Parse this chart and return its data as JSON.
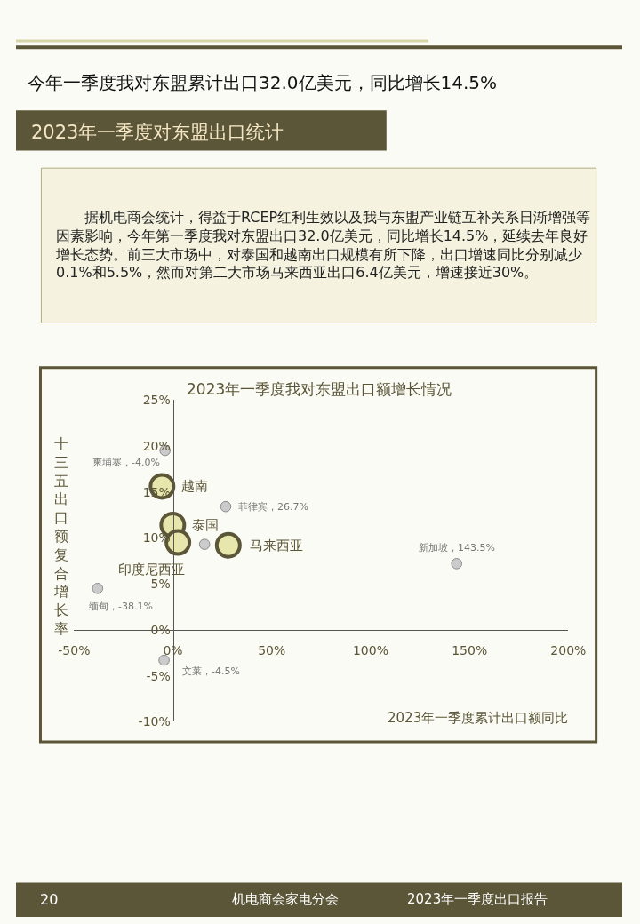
{
  "chart_data": {
    "type": "bubble",
    "title": "2023年一季度我对东盟出口额增长情况",
    "xlabel": "2023年一季度累计出口额同比",
    "ylabel": "十三五出口额复合增长率",
    "x": [
      -4.0,
      -5.5,
      26.7,
      -0.1,
      2.5,
      16,
      28,
      143.5,
      -38.1,
      -4.5
    ],
    "values": [
      19.5,
      15.6,
      13.4,
      11.4,
      9.5,
      9.3,
      9.2,
      7.2,
      4.5,
      -3.3
    ],
    "sizes": [
      0.2,
      1,
      0.2,
      1,
      1,
      0.2,
      1,
      0.2,
      0.2,
      0.2
    ],
    "colors": [
      "#cbcbcb",
      "#e6e6ad",
      "#cbcbcb",
      "#e6e6ad",
      "#e6e6ad",
      "#cbcbcb",
      "#e6e6ad",
      "#cbcbcb",
      "#cbcbcb",
      "#cbcbcb"
    ],
    "marker": "circle",
    "xlim": [
      -50,
      200
    ],
    "xticks": [
      {
        "value": -50,
        "label": "-50%"
      },
      {
        "value": 0,
        "label": "0%"
      },
      {
        "value": 50,
        "label": "50%"
      },
      {
        "value": 100,
        "label": "100%"
      },
      {
        "value": 150,
        "label": "150%"
      },
      {
        "value": 200,
        "label": "200%"
      }
    ],
    "ylim": [
      -10,
      25
    ],
    "yticks": [
      {
        "value": -10,
        "label": "-10%"
      },
      {
        "value": -5,
        "label": "-5%"
      },
      {
        "value": 0,
        "label": "0%"
      },
      {
        "value": 5,
        "label": "5%"
      },
      {
        "value": 10,
        "label": "10%"
      },
      {
        "value": 15,
        "label": "15%"
      },
      {
        "value": 20,
        "label": "20%"
      },
      {
        "value": 25,
        "label": "25%"
      }
    ],
    "grid": false,
    "legend": false,
    "annotations": [
      "今年一季度我对东盟累计出口32.0亿美元，同比增长14.5%",
      "2023年一季度对东盟出口统计",
      "据机电商会统计，得益于RCEP红利生效以及我与东盟产业链互补关系日渐增强等因素影响，今年第一季度我对东盟出口32.0亿美元，同比增长14.5%，延续去年良好增长态势。前三大市场中，对泰国和越南出口规模有所下降，出口增速同比分别减少0.1%和5.5%，然而对第二大市场马来西亚出口6.4亿美元，增速接近30%。",
      "20",
      "机电商会家电分会",
      "2023年一季度出口报告",
      {
        "text": "柬埔寨，-4.0%",
        "x": -4.0,
        "y": 19.5
      },
      {
        "text": "越南",
        "x": -5.5,
        "y": 15.6
      },
      {
        "text": "菲律宾，26.7%",
        "x": 26.7,
        "y": 13.4
      },
      {
        "text": "泰国",
        "x": -0.1,
        "y": 11.4
      },
      {
        "text": "印度尼西亚",
        "x": 2.5,
        "y": 9.5
      },
      {
        "text": "马来西亚",
        "x": 28,
        "y": 9.2
      },
      {
        "text": "新加坡，143.5%",
        "x": 143.5,
        "y": 7.2
      },
      {
        "text": "缅甸，-38.1%",
        "x": -38.1,
        "y": 4.5
      },
      {
        "text": "文莱，-4.5%",
        "x": -4.5,
        "y": -3.3
      }
    ]
  }
}
